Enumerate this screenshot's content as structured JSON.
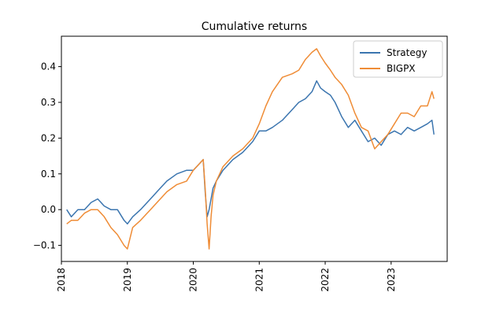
{
  "chart_data": {
    "type": "line",
    "title": "Cumulative returns",
    "xlabel": "",
    "ylabel": "",
    "xlim": [
      2018.0,
      2023.85
    ],
    "ylim": [
      -0.145,
      0.485
    ],
    "x_ticks": [
      2018,
      2019,
      2020,
      2021,
      2022,
      2023
    ],
    "x_tick_labels": [
      "2018",
      "2019",
      "2020",
      "2021",
      "2022",
      "2023"
    ],
    "y_ticks": [
      -0.1,
      0.0,
      0.1,
      0.2,
      0.3,
      0.4
    ],
    "y_tick_labels": [
      "−0.1",
      "0.0",
      "0.1",
      "0.2",
      "0.3",
      "0.4"
    ],
    "legend_position": "top-right",
    "grid": false,
    "series": [
      {
        "name": "Strategy",
        "color": "#3b75af",
        "x": [
          2018.08,
          2018.15,
          2018.25,
          2018.35,
          2018.45,
          2018.55,
          2018.65,
          2018.75,
          2018.85,
          2018.95,
          2019.0,
          2019.08,
          2019.2,
          2019.35,
          2019.5,
          2019.6,
          2019.75,
          2019.9,
          2020.0,
          2020.1,
          2020.15,
          2020.18,
          2020.21,
          2020.24,
          2020.27,
          2020.3,
          2020.35,
          2020.45,
          2020.6,
          2020.75,
          2020.9,
          2021.0,
          2021.1,
          2021.2,
          2021.35,
          2021.5,
          2021.6,
          2021.7,
          2021.8,
          2021.87,
          2021.93,
          2022.0,
          2022.08,
          2022.15,
          2022.25,
          2022.35,
          2022.45,
          2022.55,
          2022.65,
          2022.75,
          2022.85,
          2022.95,
          2023.05,
          2023.15,
          2023.25,
          2023.35,
          2023.45,
          2023.55,
          2023.62,
          2023.65
        ],
        "y": [
          0.0,
          -0.02,
          0.0,
          0.0,
          0.02,
          0.03,
          0.01,
          0.0,
          0.0,
          -0.03,
          -0.04,
          -0.02,
          0.0,
          0.03,
          0.06,
          0.08,
          0.1,
          0.11,
          0.11,
          0.13,
          0.14,
          0.05,
          -0.02,
          0.0,
          0.03,
          0.06,
          0.08,
          0.11,
          0.14,
          0.16,
          0.19,
          0.22,
          0.22,
          0.23,
          0.25,
          0.28,
          0.3,
          0.31,
          0.33,
          0.36,
          0.34,
          0.33,
          0.32,
          0.3,
          0.26,
          0.23,
          0.25,
          0.22,
          0.19,
          0.2,
          0.18,
          0.21,
          0.22,
          0.21,
          0.23,
          0.22,
          0.23,
          0.24,
          0.25,
          0.21
        ]
      },
      {
        "name": "BIGPX",
        "color": "#ef8c36",
        "x": [
          2018.08,
          2018.15,
          2018.25,
          2018.35,
          2018.45,
          2018.55,
          2018.65,
          2018.75,
          2018.85,
          2018.95,
          2019.0,
          2019.08,
          2019.2,
          2019.35,
          2019.5,
          2019.6,
          2019.75,
          2019.9,
          2020.0,
          2020.1,
          2020.15,
          2020.18,
          2020.21,
          2020.24,
          2020.27,
          2020.3,
          2020.35,
          2020.45,
          2020.6,
          2020.75,
          2020.9,
          2021.0,
          2021.1,
          2021.2,
          2021.35,
          2021.5,
          2021.6,
          2021.7,
          2021.8,
          2021.87,
          2021.93,
          2022.0,
          2022.08,
          2022.15,
          2022.25,
          2022.35,
          2022.45,
          2022.55,
          2022.65,
          2022.75,
          2022.85,
          2022.95,
          2023.05,
          2023.15,
          2023.25,
          2023.35,
          2023.45,
          2023.55,
          2023.62,
          2023.65
        ],
        "y": [
          -0.04,
          -0.03,
          -0.03,
          -0.01,
          0.0,
          0.0,
          -0.02,
          -0.05,
          -0.07,
          -0.1,
          -0.11,
          -0.05,
          -0.03,
          0.0,
          0.03,
          0.05,
          0.07,
          0.08,
          0.11,
          0.13,
          0.14,
          0.06,
          -0.04,
          -0.11,
          -0.02,
          0.04,
          0.08,
          0.12,
          0.15,
          0.17,
          0.2,
          0.24,
          0.29,
          0.33,
          0.37,
          0.38,
          0.39,
          0.42,
          0.44,
          0.45,
          0.43,
          0.41,
          0.39,
          0.37,
          0.35,
          0.32,
          0.27,
          0.23,
          0.22,
          0.17,
          0.19,
          0.21,
          0.24,
          0.27,
          0.27,
          0.26,
          0.29,
          0.29,
          0.33,
          0.31
        ]
      }
    ]
  }
}
